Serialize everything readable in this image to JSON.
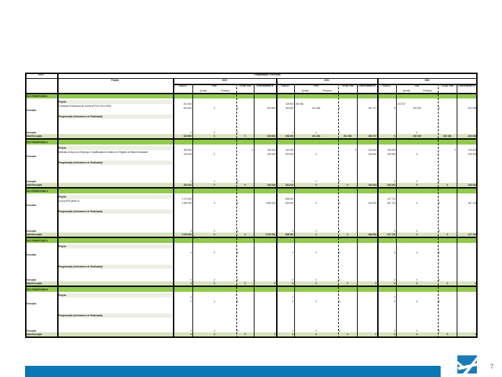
{
  "table": {
    "corner_label": "EIXO",
    "title": "Programação / Execução",
    "project_header": "Projeto",
    "year_blocks": [
      {
        "year": "2020",
        "custo": "CUSTO",
        "fse": "FSE",
        "fse_sub1": "Quotas",
        "fse_sub2": "Privados",
        "total": "TOTAL FSE",
        "contraparte": "CONTRAPARTE"
      },
      {
        "year": "2021",
        "custo": "CUSTO",
        "fse": "FSE",
        "fse_sub1": "Quotas",
        "fse_sub2": "Privados",
        "total": "TOTAL FSE",
        "contraparte": "CONTRAPARTE"
      },
      {
        "year": "2022",
        "custo": "CUSTO",
        "fse": "FSE",
        "fse_sub1": "Quotas",
        "fse_sub2": "Privados",
        "total": "TOTAL FSE",
        "contraparte": "CONTRAPARTE"
      }
    ],
    "sections": [
      {
        "name": "EIXO PRIORITÁRIO 1",
        "row_label_a": "Execução",
        "row_label_b": "Execução",
        "row_label_total": "Total Execução",
        "project_label": "Projeto",
        "project_desc": "Formação Profissional de Jovens (POCH 2014-2020)",
        "physical_label": "Programação (Indicadores de Realização)",
        "values": {
          "b1": {
            "custo_a": "812 300",
            "custo_b": "623 600",
            "fse_a": "",
            "fse_b": "0",
            "tot_b": "0",
            "contra_b": "623 600",
            "custo_c": "0",
            "fse_c": "0",
            "tot_c": "0",
            "custo_t": "623 600",
            "fse_t": "0",
            "tot_t": "0",
            "contra_t": "623 600"
          },
          "b2": {
            "custo_a": "418 200",
            "custo_b": "363 500",
            "fse_a": "300 081",
            "fse_b": "201 663",
            "tot_b": "0",
            "contra_b": "361 707",
            "custo_c": "0",
            "fse_c": "0",
            "tot_c": "0",
            "custo_t": "408 200",
            "fse_t": "201 303",
            "tot_t": "201 303",
            "contra_t": "206 707"
          },
          "b3": {
            "custo_a": "",
            "custo_b": "0",
            "fse_a": "101 017",
            "fse_b": "202 028",
            "tot_b": "0",
            "contra_b": "-202 028",
            "custo_c": "",
            "fse_c": "0",
            "tot_c": "",
            "custo_t": "0",
            "fse_t": "202 028",
            "tot_t": "202 028",
            "contra_t": "-202 028"
          }
        }
      },
      {
        "name": "EIXO PRIORITÁRIO 2",
        "row_label_a": "Execução",
        "row_label_b": "Execução",
        "row_label_total": "Total Execução",
        "project_label": "Projeto",
        "project_desc": "Medidas de Apoio ao Emprego e Qualificação de Adultos em Regiões de Baixa Densidade",
        "physical_label": "Programação (Indicadores de Realização)",
        "values": {
          "b1": {
            "custo_a": "300 000",
            "custo_b": "200 000",
            "fse_a": "",
            "fse_b": "0",
            "tot_a": "0",
            "tot_b": "",
            "contra_a": "344 444",
            "contra_b": "200 000",
            "custo_c": "0",
            "fse_c": "0",
            "tot_c": "0",
            "custo_t": "344 444",
            "fse_t": "0",
            "tot_t": "0",
            "contra_t": "344 444"
          },
          "b2": {
            "custo_a": "100 000",
            "custo_b": "200 000",
            "fse_a": "",
            "fse_b": "0",
            "tot_a": "0",
            "contra_a": "344 444",
            "contra_b": "200 000",
            "custo_c": "0",
            "fse_c": "0",
            "tot_c": "0",
            "custo_t": "344 444",
            "fse_t": "0",
            "tot_t": "0",
            "contra_t": "344 444"
          },
          "b3": {
            "custo_a": "100 000",
            "custo_b": "200 000",
            "fse_a": "",
            "fse_b": "0",
            "tot_a": "0",
            "contra_a": "100 000",
            "contra_b": "200 000",
            "custo_c": "0",
            "fse_c": "0",
            "tot_c": "0",
            "custo_t": "344 444",
            "fse_t": "0",
            "tot_t": "0",
            "contra_t": "344 444"
          }
        }
      },
      {
        "name": "EIXO PRIORITÁRIO 3",
        "row_label_a": "Execução",
        "row_label_b": "Execução",
        "row_label_total": "Total Execução",
        "project_label": "Projeto",
        "project_desc": "Cursos EFA (Nível 4)",
        "physical_label": "Programação (Indicadores de Realização)",
        "values": {
          "b1": {
            "custo_a": "2 170 000",
            "custo_b": "2 360 000",
            "fse_a": "",
            "fse_b": "0",
            "tot_b": "0",
            "contra_b": "2 360 000",
            "custo_c": "0",
            "fse_c": "0",
            "tot_c": "0",
            "custo_t": "2 370 000",
            "fse_t": "0",
            "tot_t": "0",
            "contra_t": "2 370 000"
          },
          "b2": {
            "custo_a": "848 000",
            "custo_b": "643 000",
            "fse_a": "",
            "fse_b": "0",
            "tot_b": "0",
            "contra_b": "643 000",
            "custo_c": "0",
            "fse_c": "0",
            "tot_c": "0",
            "custo_t": "848 000",
            "fse_t": "0",
            "tot_t": "0",
            "contra_t": "848 000"
          },
          "b3": {
            "custo_a": "217 712",
            "custo_b": "367 724",
            "fse_a": "",
            "fse_b": "0",
            "tot_b": "0",
            "contra_b": "367 724",
            "custo_c": "0",
            "fse_c": "0",
            "tot_c": "0",
            "custo_t": "217 722",
            "fse_t": "0",
            "tot_t": "0",
            "contra_t": "217 722"
          }
        }
      },
      {
        "name": "EIXO PRIORITÁRIO 4",
        "row_label_a": "Execução",
        "row_label_b": "Execução",
        "row_label_total": "Total Execução",
        "project_label": "Projeto",
        "project_desc": "",
        "physical_label": "Programação (Indicadores de Realização)",
        "values": {
          "b1": {
            "custo_a": "",
            "custo_b": "0",
            "fse_b": "0",
            "tot_b": "0",
            "contra_b": "",
            "custo_c": "0",
            "fse_c": "0",
            "tot_c": "0",
            "custo_t": "0",
            "fse_t": "0",
            "tot_t": "0",
            "contra_t": "0"
          },
          "b2": {
            "custo_a": "",
            "custo_b": "0",
            "fse_b": "0",
            "tot_b": "0",
            "contra_b": "",
            "custo_c": "0",
            "fse_c": "0",
            "tot_c": "0",
            "custo_t": "0",
            "fse_t": "0",
            "tot_t": "0",
            "contra_t": "0"
          },
          "b3": {
            "custo_a": "",
            "custo_b": "0",
            "fse_b": "0",
            "tot_b": "0",
            "contra_b": "",
            "custo_c": "0",
            "fse_c": "0",
            "tot_c": "0",
            "custo_t": "0",
            "fse_t": "0",
            "tot_t": "0",
            "contra_t": "0"
          }
        }
      },
      {
        "name": "EIXO PRIORITÁRIO 5",
        "row_label_a": "Execução",
        "row_label_b": "Execução",
        "row_label_total": "Total Execução",
        "project_label": "Projeto",
        "project_desc": "",
        "physical_label": "Programação (Indicadores de Realização)",
        "values": {
          "b1": {
            "custo_a": "0",
            "custo_b": "0",
            "fse_b": "0",
            "tot_b": "0",
            "contra_b": "",
            "custo_c": "0",
            "fse_c": "0",
            "tot_c": "0",
            "custo_t": "0",
            "fse_t": "0",
            "tot_t": "0",
            "contra_t": "0"
          },
          "b2": {
            "custo_a": "0",
            "custo_b": "0",
            "fse_b": "0",
            "tot_b": "0",
            "contra_b": "",
            "custo_c": "0",
            "fse_c": "0",
            "tot_c": "0",
            "custo_t": "0",
            "fse_t": "0",
            "tot_t": "0",
            "contra_t": "0"
          },
          "b3": {
            "custo_a": "0",
            "custo_b": "0",
            "fse_b": "0",
            "tot_b": "0",
            "contra_b": "",
            "custo_c": "0",
            "fse_c": "0",
            "tot_c": "0",
            "custo_t": "0",
            "fse_t": "0",
            "tot_t": "0",
            "contra_t": "0"
          }
        }
      }
    ]
  },
  "footer": {
    "page_number": "7",
    "logo_icon": "brand-logo-icon",
    "bar_color": "#0a78b4",
    "logo_color": "#1b7bb9"
  },
  "colors": {
    "section_green": "#92c94e",
    "subtotal_green": "#d7e2bf",
    "light_row": "#ecefe3"
  }
}
